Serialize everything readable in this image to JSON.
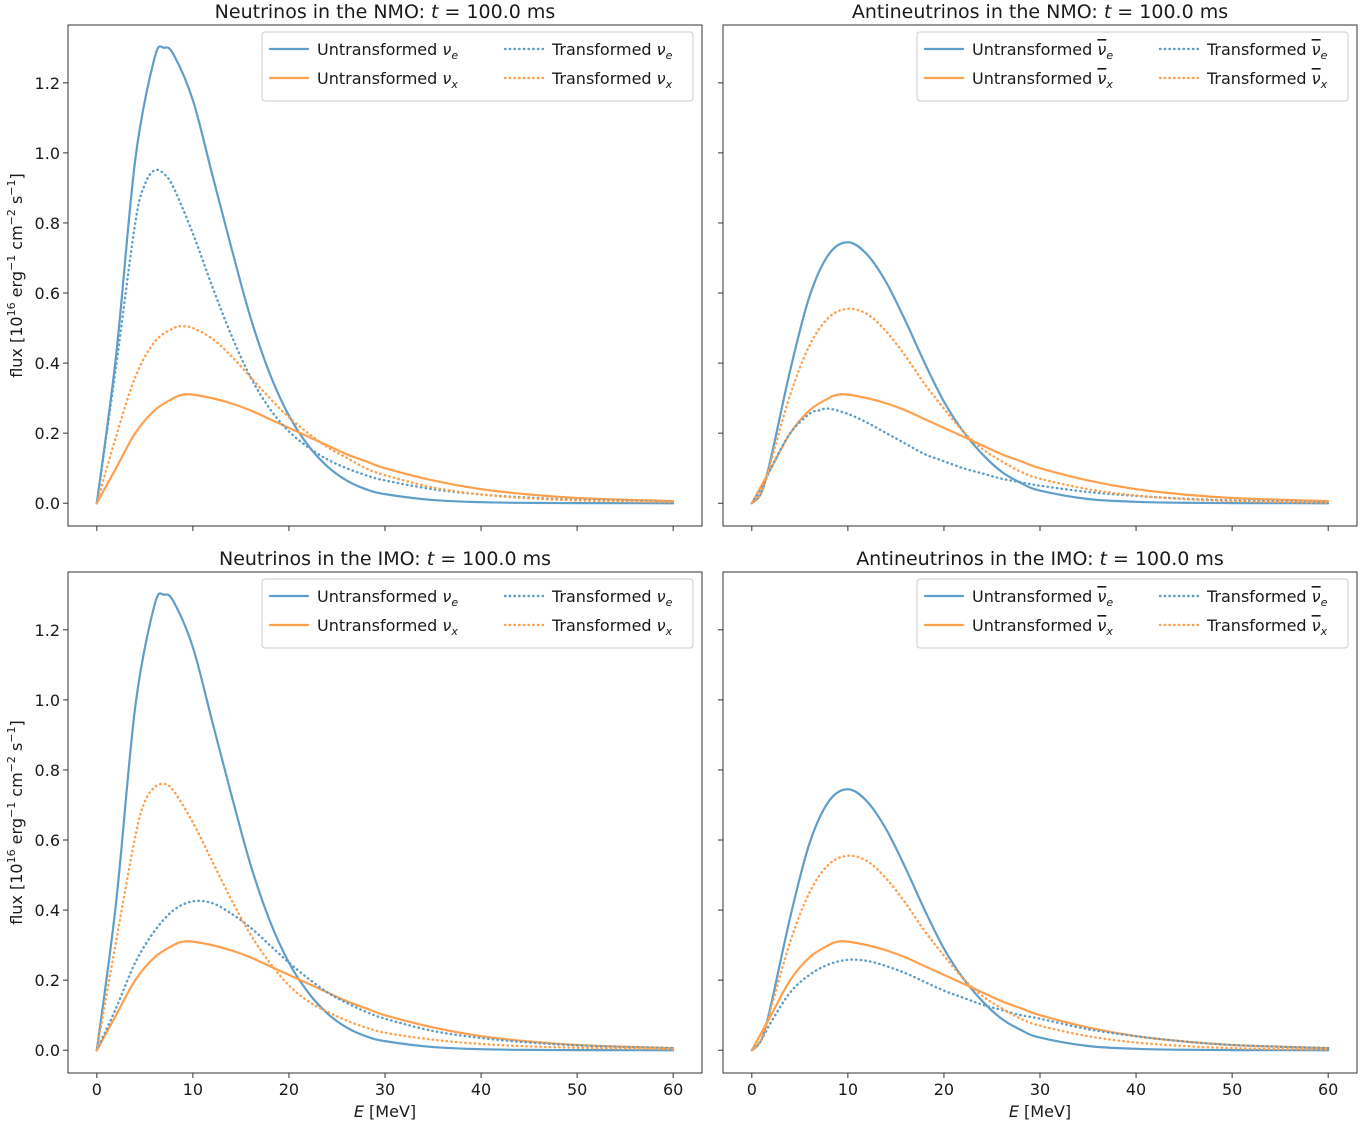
{
  "colors": {
    "blue": "#5f9ec9",
    "orange": "#ffa04d"
  },
  "chart_data": [
    {
      "id": "nu-nmo",
      "type": "line",
      "title": "Neutrinos in the NMO: t = 100.0 ms",
      "xlabel": "",
      "ylabel": "flux [10^16 erg^-1 cm^-2 s^-1]",
      "xlim": [
        -3,
        63
      ],
      "ylim": [
        -0.065,
        1.365
      ],
      "xticks": [
        0,
        10,
        20,
        30,
        40,
        50,
        60
      ],
      "yticks": [
        0.0,
        0.2,
        0.4,
        0.6,
        0.8,
        1.0,
        1.2
      ],
      "legend": "top-right",
      "series": [
        {
          "name": "Untransformed ν_e",
          "color": "#5f9ec9",
          "style": "solid",
          "x": [
            0,
            2,
            4,
            6,
            7,
            8,
            10,
            12,
            14,
            16,
            18,
            20,
            22,
            24,
            26,
            28,
            30,
            35,
            40,
            45,
            50,
            55,
            60
          ],
          "y": [
            0.0,
            0.42,
            0.98,
            1.27,
            1.3,
            1.28,
            1.15,
            0.94,
            0.73,
            0.53,
            0.37,
            0.25,
            0.165,
            0.105,
            0.065,
            0.04,
            0.026,
            0.009,
            0.003,
            0.001,
            0.0004,
            0.0001,
            0.0
          ]
        },
        {
          "name": "Untransformed ν_x",
          "color": "#ffa04d",
          "style": "solid",
          "x": [
            0,
            2,
            4,
            6,
            8,
            9,
            10,
            12,
            14,
            16,
            18,
            20,
            22,
            24,
            26,
            28,
            30,
            35,
            40,
            45,
            50,
            55,
            60
          ],
          "y": [
            0.0,
            0.1,
            0.2,
            0.265,
            0.3,
            0.31,
            0.31,
            0.3,
            0.285,
            0.265,
            0.24,
            0.215,
            0.19,
            0.165,
            0.14,
            0.12,
            0.1,
            0.065,
            0.04,
            0.025,
            0.015,
            0.01,
            0.006
          ]
        },
        {
          "name": "Transformed ν_e",
          "color": "#5f9ec9",
          "style": "dotted",
          "x": [
            0,
            2,
            4,
            5,
            6,
            7,
            8,
            10,
            12,
            14,
            16,
            18,
            20,
            22,
            24,
            26,
            28,
            30,
            35,
            40,
            45,
            50,
            55,
            60
          ],
          "y": [
            0.0,
            0.39,
            0.8,
            0.91,
            0.95,
            0.94,
            0.9,
            0.77,
            0.62,
            0.48,
            0.36,
            0.27,
            0.205,
            0.16,
            0.125,
            0.1,
            0.08,
            0.065,
            0.04,
            0.025,
            0.016,
            0.01,
            0.007,
            0.004
          ]
        },
        {
          "name": "Transformed ν_x",
          "color": "#ffa04d",
          "style": "dotted",
          "x": [
            0,
            2,
            4,
            6,
            8,
            9,
            10,
            12,
            14,
            16,
            18,
            20,
            22,
            24,
            26,
            28,
            30,
            35,
            40,
            45,
            50,
            55,
            60
          ],
          "y": [
            0.0,
            0.19,
            0.36,
            0.46,
            0.5,
            0.505,
            0.5,
            0.47,
            0.42,
            0.36,
            0.3,
            0.245,
            0.2,
            0.16,
            0.13,
            0.1,
            0.08,
            0.045,
            0.025,
            0.014,
            0.008,
            0.005,
            0.003
          ]
        }
      ]
    },
    {
      "id": "anu-nmo",
      "type": "line",
      "title": "Antineutrinos in the NMO: t = 100.0 ms",
      "xlabel": "",
      "ylabel": "",
      "xlim": [
        -3,
        63
      ],
      "ylim": [
        -0.065,
        1.365
      ],
      "xticks": [
        0,
        10,
        20,
        30,
        40,
        50,
        60
      ],
      "yticks": [
        0.0,
        0.2,
        0.4,
        0.6,
        0.8,
        1.0,
        1.2
      ],
      "legend": "top-right",
      "series": [
        {
          "name": "Untransformed ν̄_e",
          "color": "#5f9ec9",
          "style": "solid",
          "x": [
            0,
            1,
            2,
            4,
            6,
            8,
            10,
            12,
            14,
            16,
            18,
            20,
            22,
            24,
            26,
            28,
            30,
            35,
            40,
            45,
            50,
            55,
            60
          ],
          "y": [
            0.0,
            0.03,
            0.13,
            0.38,
            0.59,
            0.71,
            0.745,
            0.71,
            0.63,
            0.52,
            0.4,
            0.29,
            0.205,
            0.14,
            0.09,
            0.058,
            0.036,
            0.012,
            0.004,
            0.0013,
            0.0004,
            0.0001,
            0.0
          ]
        },
        {
          "name": "Untransformed ν̄_x",
          "color": "#ffa04d",
          "style": "solid",
          "x": [
            0,
            2,
            4,
            6,
            8,
            9,
            10,
            12,
            14,
            16,
            18,
            20,
            22,
            24,
            26,
            28,
            30,
            35,
            40,
            45,
            50,
            55,
            60
          ],
          "y": [
            0.0,
            0.1,
            0.2,
            0.265,
            0.3,
            0.31,
            0.31,
            0.3,
            0.285,
            0.265,
            0.24,
            0.215,
            0.19,
            0.165,
            0.14,
            0.12,
            0.1,
            0.065,
            0.04,
            0.025,
            0.015,
            0.01,
            0.006
          ]
        },
        {
          "name": "Transformed ν̄_e",
          "color": "#5f9ec9",
          "style": "dotted",
          "x": [
            0,
            1,
            2,
            4,
            6,
            7,
            8,
            10,
            12,
            14,
            16,
            18,
            20,
            22,
            24,
            26,
            28,
            30,
            35,
            40,
            45,
            50,
            55,
            60
          ],
          "y": [
            0.0,
            0.04,
            0.1,
            0.2,
            0.255,
            0.265,
            0.27,
            0.255,
            0.23,
            0.2,
            0.17,
            0.14,
            0.12,
            0.1,
            0.085,
            0.07,
            0.06,
            0.05,
            0.032,
            0.021,
            0.013,
            0.008,
            0.005,
            0.003
          ]
        },
        {
          "name": "Transformed ν̄_x",
          "color": "#ffa04d",
          "style": "dotted",
          "x": [
            0,
            1,
            2,
            4,
            6,
            8,
            10,
            12,
            14,
            16,
            18,
            20,
            22,
            24,
            26,
            28,
            30,
            35,
            40,
            45,
            50,
            55,
            60
          ],
          "y": [
            0.0,
            0.03,
            0.12,
            0.31,
            0.45,
            0.53,
            0.555,
            0.54,
            0.49,
            0.42,
            0.34,
            0.27,
            0.205,
            0.155,
            0.12,
            0.09,
            0.07,
            0.04,
            0.022,
            0.012,
            0.006,
            0.003,
            0.002
          ]
        }
      ]
    },
    {
      "id": "nu-imo",
      "type": "line",
      "title": "Neutrinos in the IMO: t = 100.0 ms",
      "xlabel": "E [MeV]",
      "ylabel": "flux [10^16 erg^-1 cm^-2 s^-1]",
      "xlim": [
        -3,
        63
      ],
      "ylim": [
        -0.065,
        1.365
      ],
      "xticks": [
        0,
        10,
        20,
        30,
        40,
        50,
        60
      ],
      "yticks": [
        0.0,
        0.2,
        0.4,
        0.6,
        0.8,
        1.0,
        1.2
      ],
      "legend": "top-right",
      "series": [
        {
          "name": "Untransformed ν_e",
          "color": "#5f9ec9",
          "style": "solid",
          "x": [
            0,
            2,
            4,
            6,
            7,
            8,
            10,
            12,
            14,
            16,
            18,
            20,
            22,
            24,
            26,
            28,
            30,
            35,
            40,
            45,
            50,
            55,
            60
          ],
          "y": [
            0.0,
            0.42,
            0.98,
            1.27,
            1.3,
            1.28,
            1.15,
            0.94,
            0.73,
            0.53,
            0.37,
            0.25,
            0.165,
            0.105,
            0.065,
            0.04,
            0.026,
            0.009,
            0.003,
            0.001,
            0.0004,
            0.0001,
            0.0
          ]
        },
        {
          "name": "Untransformed ν_x",
          "color": "#ffa04d",
          "style": "solid",
          "x": [
            0,
            2,
            4,
            6,
            8,
            9,
            10,
            12,
            14,
            16,
            18,
            20,
            22,
            24,
            26,
            28,
            30,
            35,
            40,
            45,
            50,
            55,
            60
          ],
          "y": [
            0.0,
            0.1,
            0.2,
            0.265,
            0.3,
            0.31,
            0.31,
            0.3,
            0.285,
            0.265,
            0.24,
            0.215,
            0.19,
            0.165,
            0.14,
            0.12,
            0.1,
            0.065,
            0.04,
            0.025,
            0.015,
            0.01,
            0.006
          ]
        },
        {
          "name": "Transformed ν_e",
          "color": "#5f9ec9",
          "style": "dotted",
          "x": [
            0,
            2,
            4,
            6,
            8,
            10,
            12,
            14,
            16,
            18,
            20,
            22,
            24,
            26,
            28,
            30,
            35,
            40,
            45,
            50,
            55,
            60
          ],
          "y": [
            0.0,
            0.12,
            0.25,
            0.34,
            0.4,
            0.425,
            0.42,
            0.39,
            0.35,
            0.3,
            0.25,
            0.205,
            0.165,
            0.135,
            0.11,
            0.09,
            0.055,
            0.035,
            0.022,
            0.014,
            0.009,
            0.006
          ]
        },
        {
          "name": "Transformed ν_x",
          "color": "#ffa04d",
          "style": "dotted",
          "x": [
            0,
            2,
            4,
            5,
            6,
            7,
            8,
            10,
            12,
            14,
            16,
            18,
            20,
            22,
            24,
            26,
            28,
            30,
            35,
            40,
            45,
            50,
            55,
            60
          ],
          "y": [
            0.0,
            0.31,
            0.61,
            0.71,
            0.75,
            0.76,
            0.74,
            0.65,
            0.54,
            0.43,
            0.33,
            0.25,
            0.185,
            0.14,
            0.11,
            0.085,
            0.065,
            0.05,
            0.03,
            0.018,
            0.011,
            0.007,
            0.005,
            0.003
          ]
        }
      ]
    },
    {
      "id": "anu-imo",
      "type": "line",
      "title": "Antineutrinos in the IMO: t = 100.0 ms",
      "xlabel": "E [MeV]",
      "ylabel": "",
      "xlim": [
        -3,
        63
      ],
      "ylim": [
        -0.065,
        1.365
      ],
      "xticks": [
        0,
        10,
        20,
        30,
        40,
        50,
        60
      ],
      "yticks": [
        0.0,
        0.2,
        0.4,
        0.6,
        0.8,
        1.0,
        1.2
      ],
      "legend": "top-right",
      "series": [
        {
          "name": "Untransformed ν̄_e",
          "color": "#5f9ec9",
          "style": "solid",
          "x": [
            0,
            1,
            2,
            4,
            6,
            8,
            10,
            12,
            14,
            16,
            18,
            20,
            22,
            24,
            26,
            28,
            30,
            35,
            40,
            45,
            50,
            55,
            60
          ],
          "y": [
            0.0,
            0.03,
            0.13,
            0.38,
            0.59,
            0.71,
            0.745,
            0.71,
            0.63,
            0.52,
            0.4,
            0.29,
            0.205,
            0.14,
            0.09,
            0.058,
            0.036,
            0.012,
            0.004,
            0.0013,
            0.0004,
            0.0001,
            0.0
          ]
        },
        {
          "name": "Untransformed ν̄_x",
          "color": "#ffa04d",
          "style": "solid",
          "x": [
            0,
            2,
            4,
            6,
            8,
            9,
            10,
            12,
            14,
            16,
            18,
            20,
            22,
            24,
            26,
            28,
            30,
            35,
            40,
            45,
            50,
            55,
            60
          ],
          "y": [
            0.0,
            0.1,
            0.2,
            0.265,
            0.3,
            0.31,
            0.31,
            0.3,
            0.285,
            0.265,
            0.24,
            0.215,
            0.19,
            0.165,
            0.14,
            0.12,
            0.1,
            0.065,
            0.04,
            0.025,
            0.015,
            0.01,
            0.006
          ]
        },
        {
          "name": "Transformed ν̄_e",
          "color": "#5f9ec9",
          "style": "dotted",
          "x": [
            0,
            1,
            2,
            4,
            6,
            8,
            10,
            12,
            14,
            16,
            18,
            20,
            22,
            24,
            26,
            28,
            30,
            35,
            40,
            45,
            50,
            55,
            60
          ],
          "y": [
            0.0,
            0.03,
            0.08,
            0.165,
            0.215,
            0.245,
            0.258,
            0.255,
            0.24,
            0.22,
            0.195,
            0.17,
            0.15,
            0.13,
            0.115,
            0.1,
            0.09,
            0.06,
            0.04,
            0.025,
            0.015,
            0.01,
            0.006
          ]
        },
        {
          "name": "Transformed ν̄_x",
          "color": "#ffa04d",
          "style": "dotted",
          "x": [
            0,
            1,
            2,
            4,
            6,
            8,
            10,
            12,
            14,
            16,
            18,
            20,
            22,
            24,
            26,
            28,
            30,
            35,
            40,
            45,
            50,
            55,
            60
          ],
          "y": [
            0.0,
            0.03,
            0.12,
            0.31,
            0.45,
            0.53,
            0.555,
            0.54,
            0.49,
            0.42,
            0.34,
            0.27,
            0.205,
            0.155,
            0.12,
            0.09,
            0.07,
            0.04,
            0.022,
            0.012,
            0.006,
            0.003,
            0.002
          ]
        }
      ]
    }
  ]
}
